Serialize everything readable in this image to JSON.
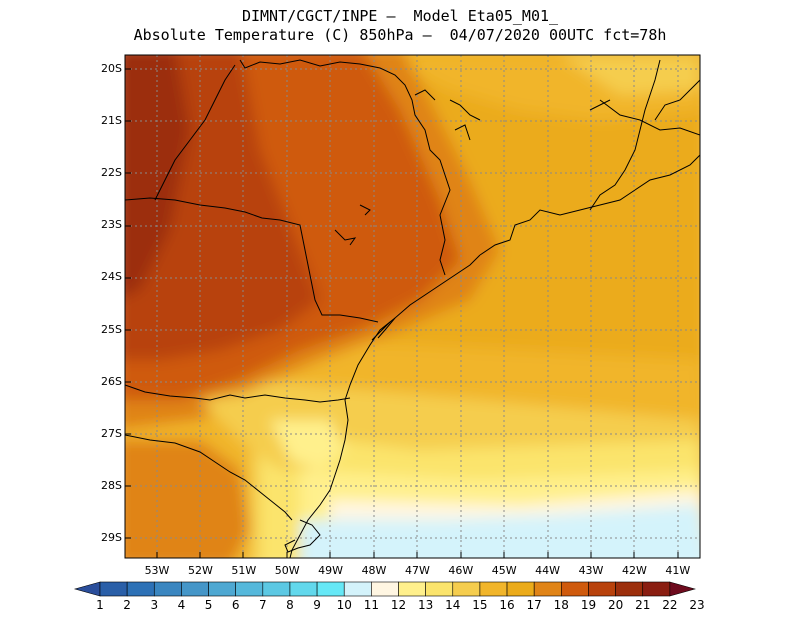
{
  "header": {
    "line1": "DIMNT/CGCT/INPE –  Model Eta05_M01_",
    "line2": "Absolute Temperature (C) 850hPa –  04/07/2020 00UTC fct=78h"
  },
  "map": {
    "lat_labels": [
      "20S",
      "21S",
      "22S",
      "23S",
      "24S",
      "25S",
      "26S",
      "27S",
      "28S",
      "29S"
    ],
    "lon_labels": [
      "53W",
      "52W",
      "51W",
      "50W",
      "49W",
      "48W",
      "47W",
      "46W",
      "45W",
      "44W",
      "43W",
      "42W",
      "41W"
    ]
  },
  "colorbar": {
    "labels": [
      "1",
      "2",
      "3",
      "4",
      "5",
      "6",
      "7",
      "8",
      "9",
      "10",
      "11",
      "12",
      "13",
      "14",
      "15",
      "16",
      "17",
      "18",
      "19",
      "20",
      "21",
      "22",
      "23"
    ],
    "colors": [
      "#2a4e9b",
      "#2a5fa8",
      "#2d71b6",
      "#3a86c0",
      "#4596c8",
      "#4ea8d2",
      "#55b8db",
      "#5cc8e3",
      "#62d8ec",
      "#66e8f6",
      "#d4f3fb",
      "#fff6e2",
      "#fff08c",
      "#fbe46c",
      "#f5cd4e",
      "#f1b52a",
      "#ebab1a",
      "#e08417",
      "#cf5a0d",
      "#b8420c",
      "#9c2f0c",
      "#8a1e11",
      "#6e0b1e"
    ]
  }
}
